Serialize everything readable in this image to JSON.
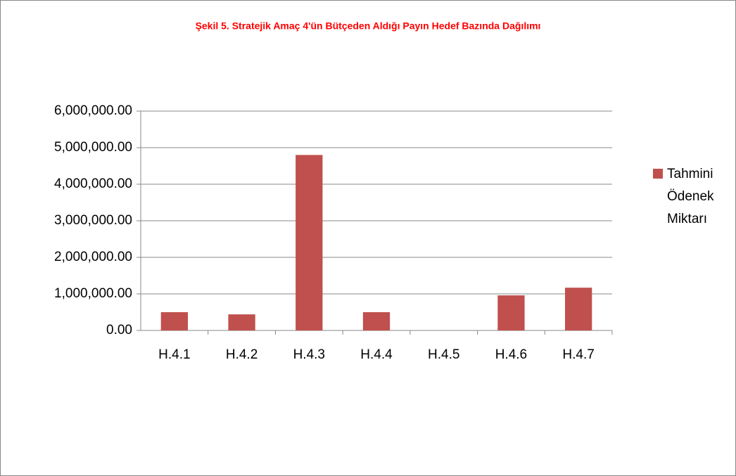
{
  "chart_data": {
    "type": "bar",
    "title": "Şekil 5. Stratejik Amaç 4'ün Bütçeden Aldığı Payın Hedef Bazında Dağılımı",
    "categories": [
      "H.4.1",
      "H.4.2",
      "H.4.3",
      "H.4.4",
      "H.4.5",
      "H.4.6",
      "H.4.7"
    ],
    "series": [
      {
        "name": "Tahmini Ödenek Miktarı",
        "color": "#c0504d",
        "values": [
          500000,
          440000,
          4800000,
          500000,
          0,
          960000,
          1170000
        ]
      }
    ],
    "ylim": [
      0,
      6000000
    ],
    "yticks": [
      {
        "value": 0,
        "label": "0.00"
      },
      {
        "value": 1000000,
        "label": "1,000,000.00"
      },
      {
        "value": 2000000,
        "label": "2,000,000.00"
      },
      {
        "value": 3000000,
        "label": "3,000,000.00"
      },
      {
        "value": 4000000,
        "label": "4,000,000.00"
      },
      {
        "value": 5000000,
        "label": "5,000,000.00"
      },
      {
        "value": 6000000,
        "label": "6,000,000.00"
      }
    ],
    "grid": true,
    "legend": "right"
  }
}
